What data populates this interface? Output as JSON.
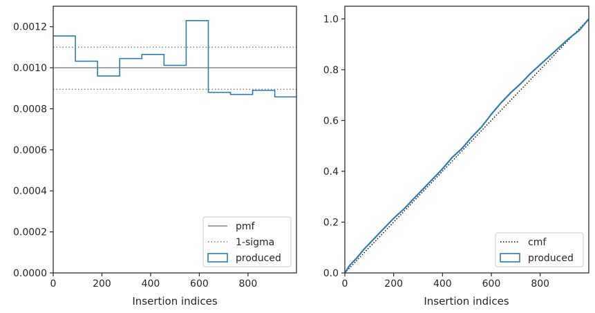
{
  "chart_data": [
    {
      "type": "line",
      "subtype": "step-histogram",
      "xlabel": "Insertion indices",
      "ylabel": "",
      "xlim": [
        0,
        999
      ],
      "ylim": [
        0,
        0.0013
      ],
      "xticks": [
        0,
        200,
        400,
        600,
        800
      ],
      "yticks": [
        0.0,
        0.0002,
        0.0004,
        0.0006,
        0.0008,
        0.001,
        0.0012
      ],
      "ytick_labels": [
        "0.0000",
        "0.0002",
        "0.0004",
        "0.0006",
        "0.0008",
        "0.0010",
        "0.0012"
      ],
      "grid": false,
      "legend_position": "lower right",
      "legend": [
        "pmf",
        "1-sigma",
        "produced"
      ],
      "pmf": {
        "name": "pmf",
        "y": 0.001,
        "color": "#808080",
        "style": "solid"
      },
      "sigma": {
        "name": "1-sigma",
        "y": [
          0.000895,
          0.0011
        ],
        "color": "#808080",
        "style": "dotted"
      },
      "produced": {
        "name": "produced",
        "color": "#2a7db5",
        "bin_edges": [
          0,
          91,
          182,
          273,
          364,
          455,
          546,
          637,
          728,
          819,
          910,
          999
        ],
        "values": [
          0.001155,
          0.001032,
          0.00096,
          0.001045,
          0.001065,
          0.001012,
          0.00123,
          0.00088,
          0.00087,
          0.00089,
          0.000858
        ]
      }
    },
    {
      "type": "line",
      "xlabel": "Insertion indices",
      "ylabel": "",
      "xlim": [
        0,
        999
      ],
      "ylim": [
        0,
        1.05
      ],
      "xticks": [
        0,
        200,
        400,
        600,
        800
      ],
      "yticks": [
        0.0,
        0.2,
        0.4,
        0.6,
        0.8,
        1.0
      ],
      "ytick_labels": [
        "0.0",
        "0.2",
        "0.4",
        "0.6",
        "0.8",
        "1.0"
      ],
      "grid": false,
      "legend_position": "lower right",
      "legend": [
        "cmf",
        "produced"
      ],
      "cmf": {
        "name": "cmf",
        "x": [
          0,
          999
        ],
        "y": [
          0,
          1.0
        ],
        "color": "#000000",
        "style": "dotted"
      },
      "produced": {
        "name": "produced",
        "color": "#2a7db5",
        "x": [
          0,
          20,
          50,
          80,
          120,
          160,
          200,
          240,
          280,
          320,
          360,
          400,
          440,
          480,
          520,
          560,
          600,
          640,
          680,
          720,
          760,
          800,
          840,
          880,
          920,
          960,
          999
        ],
        "y": [
          0,
          0.03,
          0.06,
          0.095,
          0.135,
          0.175,
          0.215,
          0.25,
          0.29,
          0.33,
          0.37,
          0.41,
          0.455,
          0.49,
          0.535,
          0.575,
          0.625,
          0.67,
          0.71,
          0.745,
          0.785,
          0.82,
          0.855,
          0.89,
          0.925,
          0.955,
          1.0
        ]
      }
    }
  ]
}
